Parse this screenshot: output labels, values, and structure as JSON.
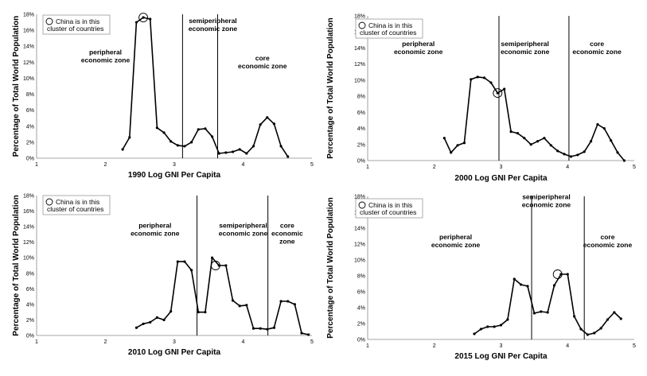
{
  "legend_label_lines": [
    "China is in this",
    "cluster of countries"
  ],
  "zone_labels": {
    "peripheral": [
      "peripheral",
      "economic zone"
    ],
    "semiperipheral": [
      "semiperipheral",
      "economic zone"
    ],
    "core_2lines": [
      "core",
      "economic zone"
    ],
    "core_3lines": [
      "core",
      "economic",
      "zone"
    ]
  },
  "chart_data": [
    {
      "type": "line",
      "xlabel": "1990 Log GNI Per Capita",
      "ylabel": "Percentage of Total World Population",
      "xlim": [
        1,
        5
      ],
      "ylim": [
        0,
        18
      ],
      "x_ticks": [
        "1",
        "2",
        "3",
        "4",
        "5"
      ],
      "y_ticks": [
        "0%",
        "2%",
        "4%",
        "6%",
        "8%",
        "10%",
        "12%",
        "14%",
        "16%",
        "18%"
      ],
      "x": [
        2.25,
        2.35,
        2.45,
        2.55,
        2.65,
        2.75,
        2.85,
        2.95,
        3.05,
        3.15,
        3.25,
        3.35,
        3.45,
        3.55,
        3.65,
        3.75,
        3.85,
        3.95,
        4.05,
        4.15,
        4.25,
        4.35,
        4.45,
        4.55,
        4.65
      ],
      "values": [
        1.1,
        2.6,
        17.0,
        17.6,
        17.4,
        3.8,
        3.2,
        2.1,
        1.6,
        1.5,
        2.0,
        3.6,
        3.7,
        2.7,
        0.6,
        0.7,
        0.8,
        1.1,
        0.6,
        1.5,
        4.2,
        5.1,
        4.3,
        1.5,
        0.2
      ],
      "boundaries": [
        3.12,
        3.63
      ],
      "china_point": [
        2.55,
        17.6
      ],
      "zones": [
        "peripheral",
        "semiperipheral",
        "core_2lines"
      ]
    },
    {
      "type": "line",
      "xlabel": "2000 Log GNI Per Capita",
      "ylabel": "Percentage of Total World Population",
      "xlim": [
        1,
        5
      ],
      "ylim": [
        0,
        18
      ],
      "x_ticks": [
        "1",
        "2",
        "3",
        "4",
        "5"
      ],
      "y_ticks": [
        "0%",
        "2%",
        "4%",
        "6%",
        "8%",
        "10%",
        "12%",
        "14%",
        "16%",
        "18%"
      ],
      "x": [
        2.15,
        2.25,
        2.35,
        2.45,
        2.55,
        2.65,
        2.75,
        2.85,
        2.95,
        3.05,
        3.15,
        3.25,
        3.35,
        3.45,
        3.55,
        3.65,
        3.75,
        3.85,
        3.95,
        4.05,
        4.15,
        4.25,
        4.35,
        4.45,
        4.55,
        4.65,
        4.75,
        4.85
      ],
      "values": [
        2.8,
        1.0,
        1.9,
        2.2,
        10.1,
        10.4,
        10.3,
        9.7,
        8.4,
        8.9,
        3.6,
        3.4,
        2.8,
        2.0,
        2.4,
        2.8,
        1.9,
        1.2,
        0.8,
        0.5,
        0.7,
        1.1,
        2.4,
        4.5,
        4.0,
        2.5,
        1.0,
        0.0
      ],
      "boundaries": [
        2.97,
        4.02
      ],
      "china_point": [
        2.95,
        8.4
      ],
      "zones": [
        "peripheral",
        "semiperipheral",
        "core_2lines"
      ]
    },
    {
      "type": "line",
      "xlabel": "2010 Log GNI Per Capita",
      "ylabel": "Percentage of Total World Population",
      "xlim": [
        1,
        5
      ],
      "ylim": [
        0,
        18
      ],
      "x_ticks": [
        "1",
        "2",
        "3",
        "4",
        "5"
      ],
      "y_ticks": [
        "0%",
        "2%",
        "4%",
        "6%",
        "8%",
        "10%",
        "12%",
        "14%",
        "16%",
        "18%"
      ],
      "x": [
        2.45,
        2.55,
        2.65,
        2.75,
        2.85,
        2.95,
        3.05,
        3.15,
        3.25,
        3.35,
        3.45,
        3.55,
        3.65,
        3.75,
        3.85,
        3.95,
        4.05,
        4.15,
        4.25,
        4.35,
        4.45,
        4.55,
        4.65,
        4.75,
        4.85,
        4.95
      ],
      "values": [
        1.0,
        1.5,
        1.7,
        2.3,
        2.0,
        3.1,
        9.5,
        9.5,
        8.4,
        3.0,
        3.0,
        10.0,
        9.0,
        9.0,
        4.5,
        3.8,
        3.9,
        0.9,
        0.9,
        0.8,
        1.0,
        4.4,
        4.4,
        4.0,
        0.3,
        0.1
      ],
      "boundaries": [
        3.33,
        4.36
      ],
      "china_point": [
        3.6,
        9.0
      ],
      "zones": [
        "peripheral",
        "semiperipheral",
        "core_3lines"
      ]
    },
    {
      "type": "line",
      "xlabel": "2015 Log GNI Per Capita",
      "ylabel": "Percentage of Total World Population",
      "xlim": [
        1,
        5
      ],
      "ylim": [
        0,
        18
      ],
      "x_ticks": [
        "1",
        "2",
        "3",
        "4",
        "5"
      ],
      "y_ticks": [
        "0%",
        "2%",
        "4%",
        "6%",
        "8%",
        "10%",
        "12%",
        "14%",
        "16%",
        "18%"
      ],
      "x": [
        2.6,
        2.7,
        2.8,
        2.9,
        3.0,
        3.1,
        3.2,
        3.3,
        3.4,
        3.5,
        3.6,
        3.7,
        3.8,
        3.9,
        4.0,
        4.1,
        4.2,
        4.3,
        4.4,
        4.5,
        4.6,
        4.7,
        4.8
      ],
      "values": [
        0.7,
        1.3,
        1.6,
        1.6,
        1.8,
        2.5,
        7.6,
        6.9,
        6.7,
        3.3,
        3.5,
        3.4,
        6.8,
        8.2,
        8.2,
        2.9,
        1.3,
        0.6,
        0.8,
        1.4,
        2.5,
        3.4,
        2.6
      ],
      "boundaries": [
        3.46,
        4.25
      ],
      "china_point": [
        3.85,
        8.2
      ],
      "zones": [
        "peripheral",
        "semiperipheral",
        "core_2lines"
      ]
    }
  ]
}
